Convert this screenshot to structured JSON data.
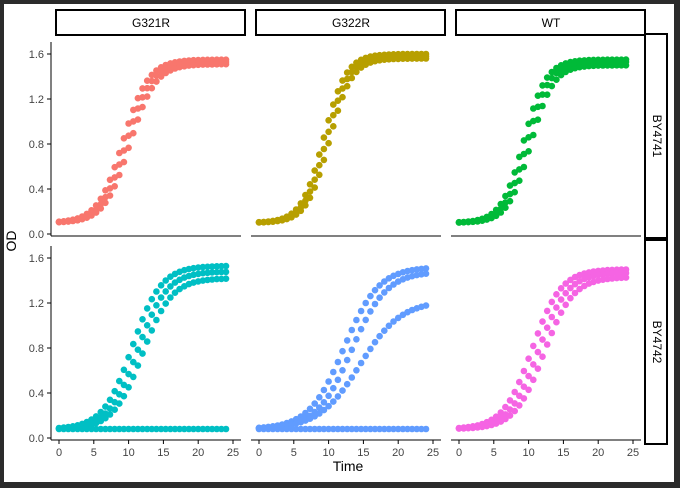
{
  "chart_data": {
    "type": "scatter",
    "xlabel": "Time",
    "ylabel": "OD",
    "xlim": [
      0,
      25
    ],
    "ylim": [
      0,
      1.6
    ],
    "x_ticks": [
      0,
      5,
      10,
      15,
      20,
      25
    ],
    "y_ticks": [
      0.0,
      0.4,
      0.8,
      1.2,
      1.6
    ],
    "y_tick_labels": [
      "0.0",
      "0.4",
      "0.8",
      "1.2",
      "1.6"
    ],
    "grid": false,
    "legend": "none",
    "columns": [
      "G321R",
      "G322R",
      "WT"
    ],
    "rows": [
      "BY4741",
      "BY4742"
    ],
    "colors": {
      "BY4741": [
        "#F8766D",
        "#B79F00",
        "#00BA38"
      ],
      "BY4742": [
        "#00BFC4",
        "#619CFF",
        "#F564E3"
      ]
    },
    "sample_times": [
      0,
      0.67,
      1.33,
      2,
      2.67,
      3.33,
      4,
      4.67,
      5.33,
      6,
      6.67,
      7.33,
      8,
      8.67,
      9.33,
      10,
      10.67,
      11.33,
      12,
      12.67,
      13.33,
      14,
      14.67,
      15.33,
      16,
      16.67,
      17.33,
      18,
      18.67,
      19.33,
      20,
      20.67,
      21.33,
      22,
      22.67,
      23.33,
      24
    ],
    "panels": [
      {
        "row": "BY4741",
        "column": "G321R",
        "curves": [
          {
            "y0": 0.1,
            "ymax": 1.55,
            "mid": 9.2,
            "rate": 0.55
          },
          {
            "y0": 0.1,
            "ymax": 1.53,
            "mid": 9.7,
            "rate": 0.55
          },
          {
            "y0": 0.1,
            "ymax": 1.51,
            "mid": 10.2,
            "rate": 0.55
          }
        ]
      },
      {
        "row": "BY4741",
        "column": "G322R",
        "curves": [
          {
            "y0": 0.1,
            "ymax": 1.6,
            "mid": 9.3,
            "rate": 0.62
          },
          {
            "y0": 0.1,
            "ymax": 1.58,
            "mid": 9.7,
            "rate": 0.62
          },
          {
            "y0": 0.1,
            "ymax": 1.56,
            "mid": 10.1,
            "rate": 0.62
          }
        ]
      },
      {
        "row": "BY4741",
        "column": "WT",
        "curves": [
          {
            "y0": 0.1,
            "ymax": 1.55,
            "mid": 9.3,
            "rate": 0.62
          },
          {
            "y0": 0.1,
            "ymax": 1.53,
            "mid": 9.8,
            "rate": 0.62
          },
          {
            "y0": 0.1,
            "ymax": 1.5,
            "mid": 10.3,
            "rate": 0.62
          }
        ]
      },
      {
        "row": "BY4742",
        "column": "G321R",
        "curves": [
          {
            "y0": 0.08,
            "ymax": 1.53,
            "mid": 10.5,
            "rate": 0.48
          },
          {
            "y0": 0.08,
            "ymax": 1.48,
            "mid": 11.3,
            "rate": 0.48
          },
          {
            "y0": 0.08,
            "ymax": 1.42,
            "mid": 12.0,
            "rate": 0.48
          },
          {
            "y0": 0.08,
            "ymax": 0.08,
            "mid": 50,
            "rate": 0.1
          }
        ]
      },
      {
        "row": "BY4742",
        "column": "G322R",
        "curves": [
          {
            "y0": 0.08,
            "ymax": 1.52,
            "mid": 12.2,
            "rate": 0.4
          },
          {
            "y0": 0.08,
            "ymax": 1.48,
            "mid": 13.3,
            "rate": 0.4
          },
          {
            "y0": 0.08,
            "ymax": 1.22,
            "mid": 14.5,
            "rate": 0.34
          },
          {
            "y0": 0.08,
            "ymax": 0.08,
            "mid": 50,
            "rate": 0.1
          }
        ]
      },
      {
        "row": "BY4742",
        "column": "WT",
        "curves": [
          {
            "y0": 0.08,
            "ymax": 1.5,
            "mid": 10.5,
            "rate": 0.48
          },
          {
            "y0": 0.08,
            "ymax": 1.47,
            "mid": 11.4,
            "rate": 0.48
          },
          {
            "y0": 0.08,
            "ymax": 1.43,
            "mid": 12.2,
            "rate": 0.48
          }
        ]
      }
    ]
  }
}
